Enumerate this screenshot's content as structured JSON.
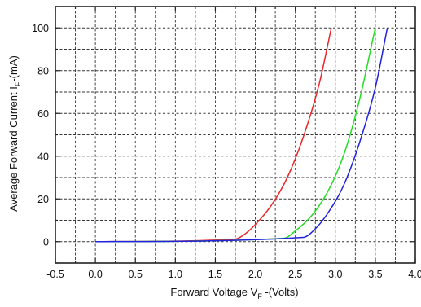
{
  "chart_data": {
    "type": "line",
    "title": "",
    "xlabel": {
      "prefix": "Forward Voltage V",
      "sub": "F",
      "suffix": " -(Volts)"
    },
    "ylabel": {
      "prefix": "Average Forward Current I",
      "sub": "F",
      "suffix": "-(mA)"
    },
    "xlim": [
      -0.5,
      4.0
    ],
    "ylim": [
      -10,
      110
    ],
    "x_ticks": [
      -0.5,
      0.0,
      0.5,
      1.0,
      1.5,
      2.0,
      2.5,
      3.0,
      3.5,
      4.0
    ],
    "x_tick_labels": [
      "-0.5",
      "0.0",
      "0.5",
      "1.0",
      "1.5",
      "2.0",
      "2.5",
      "3.0",
      "3.5",
      "4.0"
    ],
    "y_ticks": [
      0,
      20,
      40,
      60,
      80,
      100
    ],
    "y_tick_labels": [
      "0",
      "20",
      "40",
      "60",
      "80",
      "100"
    ],
    "grid": "dashed, every 0.25 V and 10 mA",
    "legend": "none",
    "series": [
      {
        "color": "#e8262a",
        "x": [
          0.0,
          1.75,
          1.85,
          2.0,
          2.2,
          2.4,
          2.6,
          2.8,
          2.95
        ],
        "y": [
          0,
          1.2,
          3,
          8,
          17,
          30,
          49,
          74,
          100
        ]
      },
      {
        "color": "#22dd22",
        "x": [
          0.0,
          2.35,
          2.5,
          2.7,
          2.9,
          3.1,
          3.3,
          3.5
        ],
        "y": [
          0,
          1.5,
          5,
          12,
          23,
          40,
          66,
          100
        ]
      },
      {
        "color": "#2222dd",
        "x": [
          0.0,
          2.6,
          2.75,
          2.9,
          3.1,
          3.3,
          3.5,
          3.65
        ],
        "y": [
          0,
          2,
          6,
          13,
          26,
          46,
          72,
          100
        ]
      }
    ]
  }
}
